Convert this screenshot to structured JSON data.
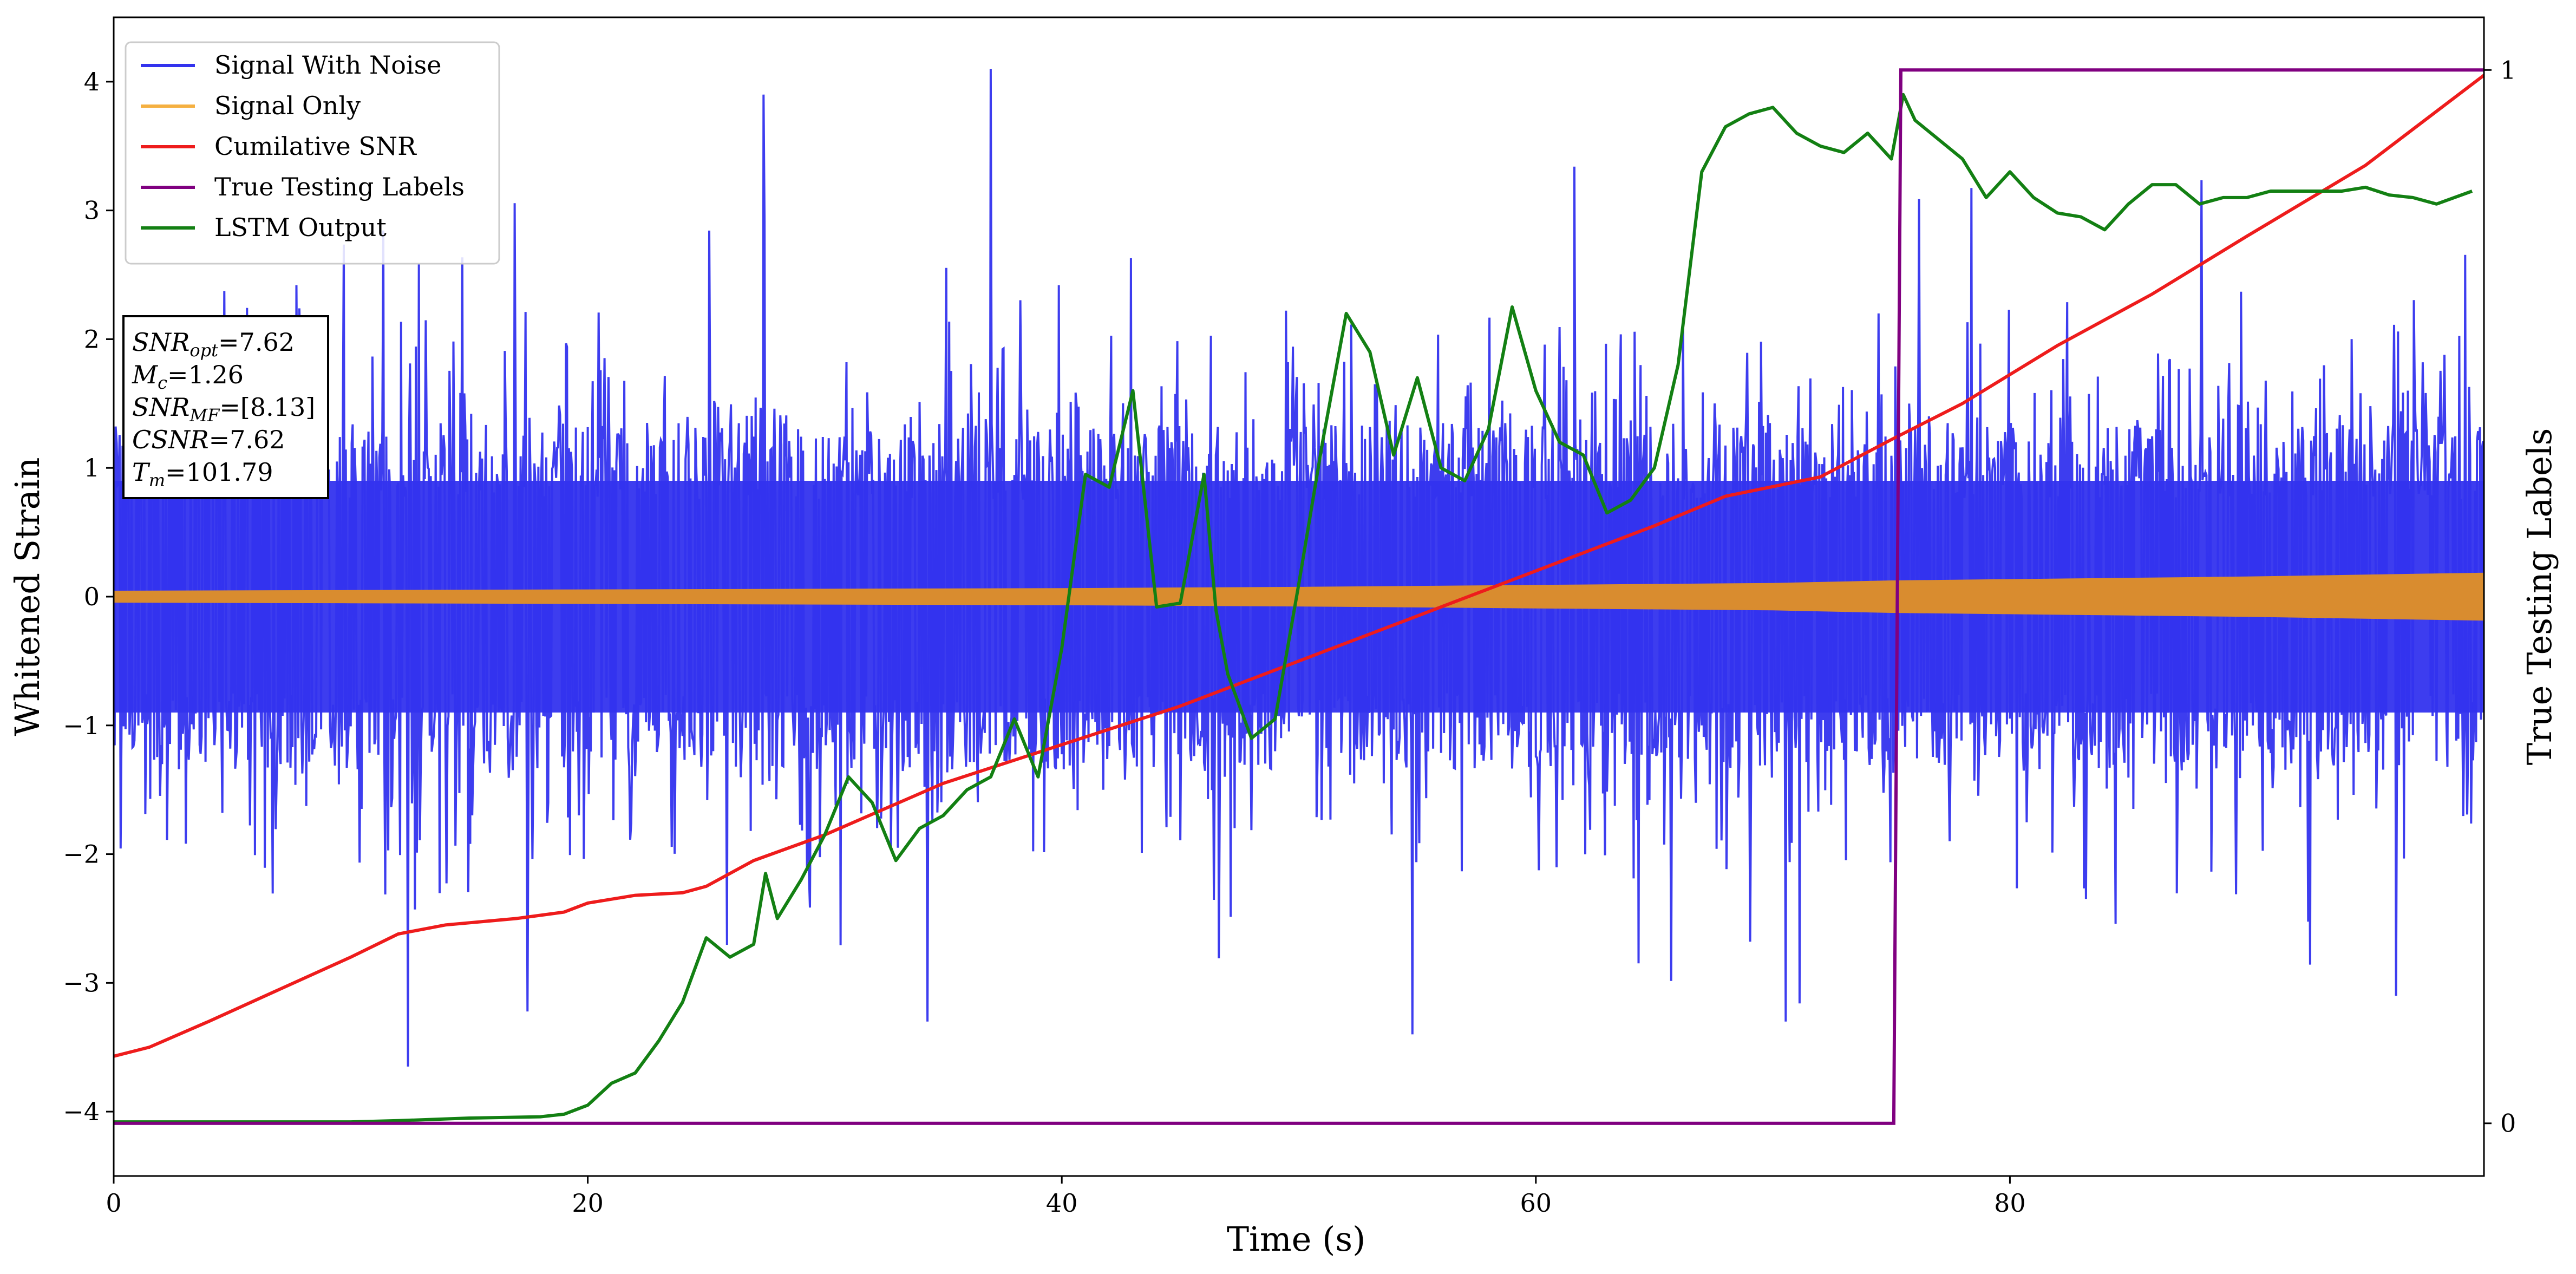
{
  "chart_data": {
    "type": "line",
    "xlabel": "Time (s)",
    "ylabel": "Whitened Strain",
    "y2label": "True Testing Labels",
    "xlim": [
      0,
      100
    ],
    "ylim": [
      -4.5,
      4.5
    ],
    "y2lim": [
      -0.05,
      1.05
    ],
    "xticks": [
      0,
      20,
      40,
      60,
      80
    ],
    "yticks": [
      -4,
      -3,
      -2,
      -1,
      0,
      1,
      2,
      3,
      4
    ],
    "y2ticks": [
      0,
      1
    ],
    "legend_position": "top-left",
    "legend": [
      {
        "label": "Signal With Noise",
        "color": "#3333ee"
      },
      {
        "label": "Signal Only",
        "color": "#f5b041"
      },
      {
        "label": "Cumilative SNR",
        "color": "#ee1c1c"
      },
      {
        "label": "True Testing Labels",
        "color": "#800080"
      },
      {
        "label": "LSTM Output",
        "color": "#138013"
      }
    ],
    "annotation": [
      {
        "base": "SNR",
        "sub": "opt",
        "text": "=7.62"
      },
      {
        "base": "M",
        "sub": "c",
        "text": "=1.26"
      },
      {
        "base": "SNR",
        "sub": "MF",
        "text": "=[8.13]"
      },
      {
        "base": "CSNR",
        "sub": "",
        "text": "=7.62"
      },
      {
        "base": "T",
        "sub": "m",
        "text": "=101.79"
      }
    ],
    "series": [
      {
        "name": "Signal With Noise",
        "axis": "left",
        "color": "#3333ee",
        "description_only": true,
        "noise_band": [
          -2.2,
          2.3
        ],
        "notable_peaks": [
          [
            37.0,
            4.1
          ],
          [
            27.4,
            3.9
          ],
          [
            12.4,
            -3.65
          ],
          [
            54.8,
            -3.4
          ],
          [
            96.3,
            -3.1
          ]
        ]
      },
      {
        "name": "Signal Only",
        "axis": "left",
        "color": "#d98c2f",
        "envelope": {
          "x": [
            0,
            10,
            20,
            30,
            40,
            50,
            60,
            70,
            75,
            80,
            85,
            90,
            95,
            100
          ],
          "amplitude": [
            0.04,
            0.045,
            0.05,
            0.055,
            0.06,
            0.07,
            0.085,
            0.1,
            0.12,
            0.13,
            0.14,
            0.15,
            0.165,
            0.18
          ]
        }
      },
      {
        "name": "Cumilative SNR",
        "axis": "left",
        "color": "#ee1c1c",
        "x": [
          0,
          1.5,
          4,
          7,
          10,
          12,
          14,
          17,
          19,
          20,
          22,
          24,
          25,
          27,
          30,
          35,
          40,
          45,
          50,
          55,
          60,
          65,
          68,
          72,
          75,
          78,
          82,
          86,
          90,
          95,
          100
        ],
        "values": [
          -3.57,
          -3.5,
          -3.3,
          -3.05,
          -2.8,
          -2.62,
          -2.55,
          -2.5,
          -2.45,
          -2.38,
          -2.32,
          -2.3,
          -2.25,
          -2.05,
          -1.85,
          -1.45,
          -1.15,
          -0.85,
          -0.5,
          -0.15,
          0.2,
          0.55,
          0.78,
          0.93,
          1.22,
          1.5,
          1.95,
          2.35,
          2.8,
          3.35,
          4.05
        ]
      },
      {
        "name": "True Testing Labels",
        "axis": "right",
        "color": "#800080",
        "x": [
          0,
          75.1,
          75.4,
          100
        ],
        "values": [
          0,
          0,
          1,
          1
        ]
      },
      {
        "name": "LSTM Output",
        "axis": "left",
        "color": "#138013",
        "x": [
          0,
          10,
          12,
          15,
          18,
          19,
          20,
          21,
          22,
          23,
          24,
          25,
          26,
          27,
          27.5,
          28,
          29,
          30,
          31,
          32,
          33,
          34,
          35,
          36,
          37,
          38,
          39,
          40,
          41,
          42,
          43,
          44,
          45,
          46,
          46.5,
          47,
          48,
          49,
          50,
          51,
          52,
          53,
          54,
          55,
          56,
          57,
          58,
          59,
          60,
          61,
          62,
          63,
          64,
          65,
          66,
          67,
          68,
          69,
          70,
          71,
          72,
          73,
          74,
          75,
          75.5,
          76,
          77,
          78,
          79,
          80,
          81,
          82,
          83,
          84,
          85,
          86,
          87,
          88,
          89,
          90,
          91,
          92,
          93,
          94,
          95,
          96,
          97,
          98,
          99.5
        ],
        "values": [
          -4.08,
          -4.08,
          -4.07,
          -4.05,
          -4.04,
          -4.02,
          -3.95,
          -3.78,
          -3.7,
          -3.45,
          -3.15,
          -2.65,
          -2.8,
          -2.7,
          -2.15,
          -2.5,
          -2.2,
          -1.85,
          -1.4,
          -1.6,
          -2.05,
          -1.8,
          -1.7,
          -1.5,
          -1.4,
          -0.95,
          -1.4,
          -0.4,
          0.95,
          0.85,
          1.6,
          -0.08,
          -0.05,
          0.95,
          -0.1,
          -0.6,
          -1.1,
          -0.95,
          0.1,
          1.2,
          2.2,
          1.9,
          1.1,
          1.7,
          1.0,
          0.9,
          1.3,
          2.25,
          1.6,
          1.2,
          1.1,
          0.65,
          0.75,
          1.0,
          1.8,
          3.3,
          3.65,
          3.75,
          3.8,
          3.6,
          3.5,
          3.45,
          3.6,
          3.4,
          3.9,
          3.7,
          3.55,
          3.4,
          3.1,
          3.3,
          3.1,
          2.98,
          2.95,
          2.85,
          3.05,
          3.2,
          3.2,
          3.05,
          3.1,
          3.1,
          3.15,
          3.15,
          3.15,
          3.15,
          3.18,
          3.12,
          3.1,
          3.05,
          3.15
        ]
      }
    ]
  }
}
